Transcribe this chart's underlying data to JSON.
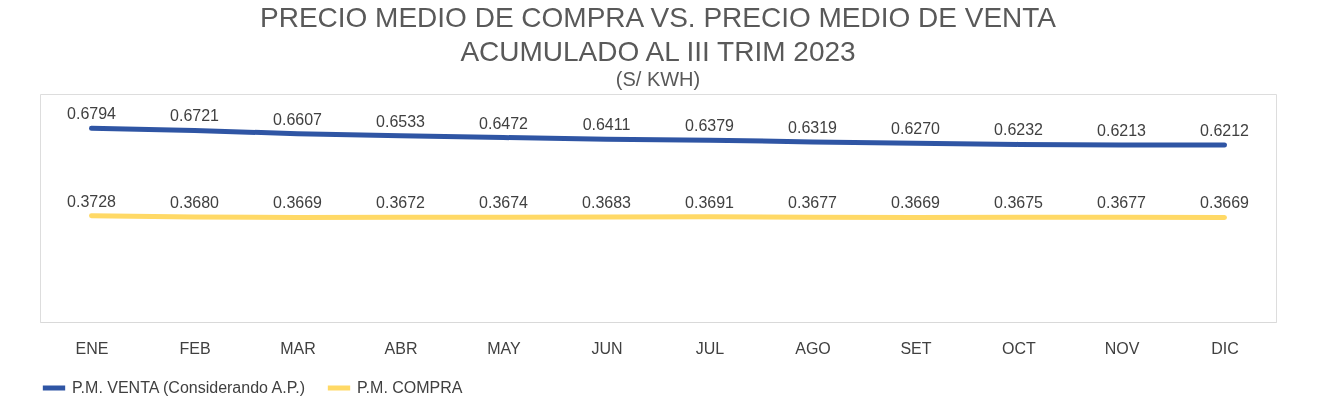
{
  "chart_data": {
    "type": "line",
    "title": "PRECIO MEDIO DE COMPRA VS. PRECIO MEDIO DE VENTA\nACUMULADO AL III TRIM 2023",
    "subtitle": "(S/ KWH)",
    "categories": [
      "ENE",
      "FEB",
      "MAR",
      "ABR",
      "MAY",
      "JUN",
      "JUL",
      "AGO",
      "SET",
      "OCT",
      "NOV",
      "DIC"
    ],
    "series": [
      {
        "name": "P.M. VENTA (Considerando A.P.)",
        "color": "#2f55a4",
        "values": [
          0.6794,
          0.6721,
          0.6607,
          0.6533,
          0.6472,
          0.6411,
          0.6379,
          0.6319,
          0.627,
          0.6232,
          0.6213,
          0.6212
        ],
        "value_labels": [
          "0.6794",
          "0.6721",
          "0.6607",
          "0.6533",
          "0.6472",
          "0.6411",
          "0.6379",
          "0.6319",
          "0.6270",
          "0.6232",
          "0.6213",
          "0.6212"
        ]
      },
      {
        "name": "P.M. COMPRA",
        "color": "#ffd966",
        "values": [
          0.3728,
          0.368,
          0.3669,
          0.3672,
          0.3674,
          0.3683,
          0.3691,
          0.3677,
          0.3669,
          0.3675,
          0.3677,
          0.3669
        ],
        "value_labels": [
          "0.3728",
          "0.3680",
          "0.3669",
          "0.3672",
          "0.3674",
          "0.3683",
          "0.3691",
          "0.3677",
          "0.3669",
          "0.3675",
          "0.3677",
          "0.3669"
        ]
      }
    ],
    "ylim": [
      0,
      0.8
    ],
    "tick_labels": "x",
    "legend": "bottom",
    "marker": "none",
    "line_style": "solid"
  }
}
